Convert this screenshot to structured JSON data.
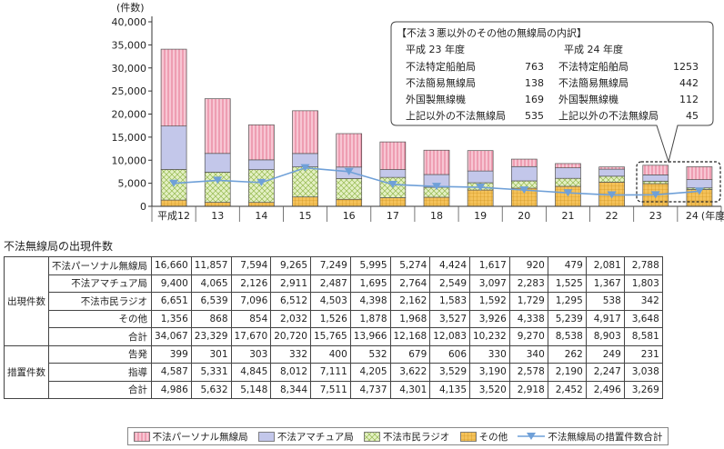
{
  "chart_data": {
    "type": "bar",
    "stacked": true,
    "unit_label": "(件数)",
    "categories": [
      "平成12",
      "13",
      "14",
      "15",
      "16",
      "17",
      "18",
      "19",
      "20",
      "21",
      "22",
      "23",
      "24"
    ],
    "x_suffix": "(年度)",
    "ylim": [
      0,
      40000
    ],
    "yticks": [
      "0",
      "5,000",
      "10,000",
      "15,000",
      "20,000",
      "25,000",
      "30,000",
      "35,000",
      "40,000"
    ],
    "colors": {
      "personal": "#f4b8c8",
      "amateur": "#b8bde6",
      "citizen": "#d4e6a8",
      "other": "#f2c05a",
      "line": "#6fa0d8"
    },
    "series": [
      {
        "name": "不法パーソナル無線局",
        "key": "personal",
        "values": [
          16660,
          11857,
          7594,
          9265,
          7249,
          5995,
          5274,
          4424,
          1617,
          920,
          479,
          2081,
          2788
        ]
      },
      {
        "name": "不法アマチュア局",
        "key": "amateur",
        "values": [
          9400,
          4065,
          2126,
          2911,
          2487,
          1695,
          2764,
          2549,
          3097,
          2283,
          1525,
          1367,
          1803
        ]
      },
      {
        "name": "不法市民ラジオ",
        "key": "citizen",
        "values": [
          6651,
          6539,
          7096,
          6512,
          4503,
          4398,
          2162,
          1583,
          1592,
          1729,
          1295,
          538,
          342
        ]
      },
      {
        "name": "その他",
        "key": "other",
        "values": [
          1356,
          868,
          854,
          2032,
          1526,
          1878,
          1968,
          3527,
          3926,
          4338,
          5239,
          4917,
          3648
        ]
      }
    ],
    "line_series": {
      "name": "不法無線局の措置件数合計",
      "values": [
        4986,
        5632,
        5148,
        8344,
        7511,
        4737,
        4301,
        4135,
        3520,
        2918,
        2452,
        2496,
        3269
      ]
    },
    "callout": {
      "title": "【不法３悪以外のその他の無線局の内訳】",
      "col_headers": [
        "平成 23 年度",
        "平成 24 年度"
      ],
      "rows_23": [
        {
          "label": "不法特定船舶局",
          "value": "763"
        },
        {
          "label": "不法簡易無線局",
          "value": "138"
        },
        {
          "label": "外国製無線機",
          "value": "169"
        },
        {
          "label": "上記以外の不法無線局",
          "value": "535"
        }
      ],
      "rows_24": [
        {
          "label": "不法特定船舶局",
          "value": "1253"
        },
        {
          "label": "不法簡易無線局",
          "value": "442"
        },
        {
          "label": "外国製無線機",
          "value": "112"
        },
        {
          "label": "上記以外の不法無線局",
          "value": "45"
        }
      ]
    }
  },
  "table": {
    "title": "不法無線局の出現件数",
    "groups": [
      {
        "label": "出現件数",
        "rows": [
          {
            "label": "不法パーソナル無線局",
            "values": [
              "16,660",
              "11,857",
              "7,594",
              "9,265",
              "7,249",
              "5,995",
              "5,274",
              "4,424",
              "1,617",
              "920",
              "479",
              "2,081",
              "2,788"
            ]
          },
          {
            "label": "不法アマチュア局",
            "values": [
              "9,400",
              "4,065",
              "2,126",
              "2,911",
              "2,487",
              "1,695",
              "2,764",
              "2,549",
              "3,097",
              "2,283",
              "1,525",
              "1,367",
              "1,803"
            ]
          },
          {
            "label": "不法市民ラジオ",
            "values": [
              "6,651",
              "6,539",
              "7,096",
              "6,512",
              "4,503",
              "4,398",
              "2,162",
              "1,583",
              "1,592",
              "1,729",
              "1,295",
              "538",
              "342"
            ]
          },
          {
            "label": "その他",
            "values": [
              "1,356",
              "868",
              "854",
              "2,032",
              "1,526",
              "1,878",
              "1,968",
              "3,527",
              "3,926",
              "4,338",
              "5,239",
              "4,917",
              "3,648"
            ]
          },
          {
            "label": "合計",
            "values": [
              "34,067",
              "23,329",
              "17,670",
              "20,720",
              "15,765",
              "13,966",
              "12,168",
              "12,083",
              "10,232",
              "9,270",
              "8,538",
              "8,903",
              "8,581"
            ]
          }
        ]
      },
      {
        "label": "措置件数",
        "rows": [
          {
            "label": "告発",
            "values": [
              "399",
              "301",
              "303",
              "332",
              "400",
              "532",
              "679",
              "606",
              "330",
              "340",
              "262",
              "249",
              "231"
            ]
          },
          {
            "label": "指導",
            "values": [
              "4,587",
              "5,331",
              "4,845",
              "8,012",
              "7,111",
              "4,205",
              "3,622",
              "3,529",
              "3,190",
              "2,578",
              "2,190",
              "2,247",
              "3,038"
            ]
          },
          {
            "label": "合計",
            "values": [
              "4,986",
              "5,632",
              "5,148",
              "8,344",
              "7,511",
              "4,737",
              "4,301",
              "4,135",
              "3,520",
              "2,918",
              "2,452",
              "2,496",
              "3,269"
            ]
          }
        ]
      }
    ]
  },
  "legend": {
    "items": [
      {
        "label": "不法パーソナル無線局",
        "key": "personal"
      },
      {
        "label": "不法アマチュア局",
        "key": "amateur"
      },
      {
        "label": "不法市民ラジオ",
        "key": "citizen"
      },
      {
        "label": "その他",
        "key": "other"
      },
      {
        "label": "不法無線局の措置件数合計",
        "key": "line"
      }
    ]
  }
}
